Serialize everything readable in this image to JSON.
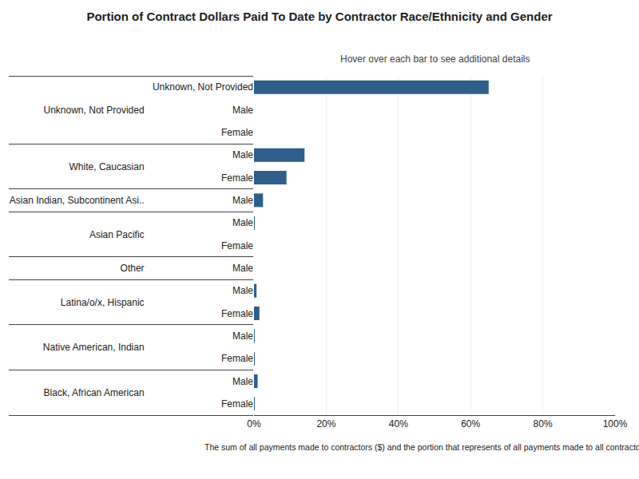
{
  "chart_data": {
    "type": "bar",
    "orientation": "horizontal",
    "title": "Portion of Contract Dollars Paid To Date by Contractor Race/Ethnicity and Gender",
    "subtitle": "Hover over each bar to see additional details",
    "footnote": "The sum of all payments made to contractors ($) and the portion that represents of all payments made to all contractors (%).",
    "category_groups": [
      "Unknown, Not Provided",
      "Unknown, Not Provided",
      "Unknown, Not Provided",
      "White, Caucasian",
      "White, Caucasian",
      "Asian Indian, Subcontinent Asi..",
      "Asian Pacific",
      "Asian Pacific",
      "Other",
      "Latina/o/x, Hispanic",
      "Latina/o/x, Hispanic",
      "Native American, Indian",
      "Native American, Indian",
      "Black, African American",
      "Black, African American"
    ],
    "categories": [
      "Unknown, Not Provided",
      "Male",
      "Female",
      "Male",
      "Female",
      "Male",
      "Male",
      "Female",
      "Male",
      "Male",
      "Female",
      "Male",
      "Female",
      "Male",
      "Female"
    ],
    "values": [
      65.0,
      0.0,
      0.0,
      14.0,
      9.0,
      2.5,
      0.2,
      0.0,
      0.0,
      0.7,
      1.5,
      0.2,
      0.1,
      1.0,
      0.2
    ],
    "color": "#2d5f8a",
    "xlim": [
      0,
      100
    ],
    "xticks": [
      {
        "value": 0,
        "label": "0%"
      },
      {
        "value": 20,
        "label": "20%"
      },
      {
        "value": 40,
        "label": "40%"
      },
      {
        "value": 60,
        "label": "60%"
      },
      {
        "value": 80,
        "label": "80%"
      },
      {
        "value": 100,
        "label": "100%"
      }
    ],
    "grid": true
  }
}
